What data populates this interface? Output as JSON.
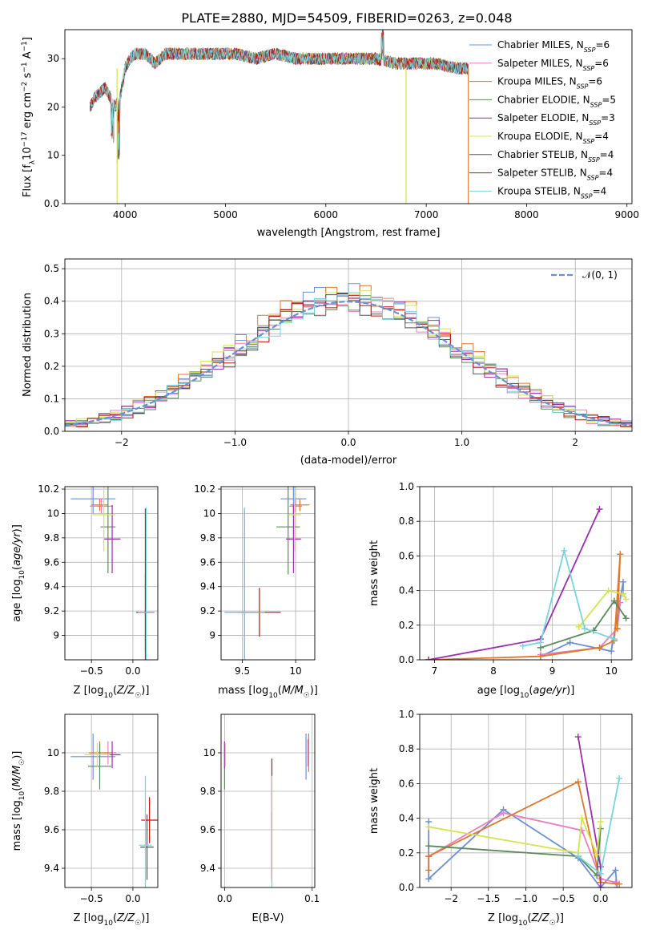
{
  "title": "PLATE=2880, MJD=54509, FIBERID=0263, z=0.048",
  "colors": {
    "chabrier_miles": "#6b8fd6",
    "salpeter_miles": "#e87fbf",
    "kroupa_miles": "#e0772a",
    "chabrier_elodie": "#5b8a5b",
    "salpeter_elodie": "#9b2fae",
    "kroupa_elodie": "#d4e34f",
    "chabrier_stelib": "#555555",
    "salpeter_stelib": "#c01010",
    "kroupa_stelib": "#77d4dc",
    "normal_curve": "#6b8fd6",
    "grid": "#b0b0b0"
  },
  "chart_data": [
    {
      "id": "spectrum",
      "type": "line",
      "xlabel": "wavelength [Angstrom, rest frame]",
      "ylabel": "Flux [f_λ 10^-17 erg cm^-2 s^-1 A^-1]",
      "xlim": [
        3400,
        9050
      ],
      "ylim": [
        0,
        36
      ],
      "xticks": [
        4000,
        5000,
        6000,
        7000,
        8000,
        9000
      ],
      "yticks": [
        0,
        10,
        20,
        30
      ],
      "grid": false,
      "legend_position": "right",
      "legend": [
        {
          "base": "Chabrier MILES, N",
          "sub": "SSP",
          "tail": "=6",
          "color_key": "chabrier_miles"
        },
        {
          "base": "Salpeter MILES, N",
          "sub": "SSP",
          "tail": "=6",
          "color_key": "salpeter_miles"
        },
        {
          "base": "Kroupa MILES, N",
          "sub": "SSP",
          "tail": "=6",
          "color_key": "kroupa_miles"
        },
        {
          "base": "Chabrier ELODIE, N",
          "sub": "SSP",
          "tail": "=5",
          "color_key": "chabrier_elodie"
        },
        {
          "base": "Salpeter ELODIE, N",
          "sub": "SSP",
          "tail": "=3",
          "color_key": "salpeter_elodie"
        },
        {
          "base": "Kroupa ELODIE, N",
          "sub": "SSP",
          "tail": "=4",
          "color_key": "kroupa_elodie"
        },
        {
          "base": "Chabrier STELIB, N",
          "sub": "SSP",
          "tail": "=4",
          "color_key": "chabrier_stelib"
        },
        {
          "base": "Salpeter STELIB, N",
          "sub": "SSP",
          "tail": "=4",
          "color_key": "salpeter_stelib"
        },
        {
          "base": "Kroupa STELIB, N",
          "sub": "SSP",
          "tail": "=4",
          "color_key": "kroupa_stelib"
        }
      ],
      "flux_envelope": {
        "x": [
          3650,
          3700,
          3750,
          3800,
          3850,
          3900,
          3950,
          4000,
          4050,
          4100,
          4200,
          4300,
          4400,
          4500,
          4700,
          4900,
          5100,
          5300,
          5500,
          5700,
          5900,
          6100,
          6300,
          6500,
          6700,
          6900,
          7100,
          7300,
          7400
        ],
        "y": [
          20,
          22,
          23,
          24,
          22,
          20,
          22,
          28,
          30,
          31,
          31,
          29,
          31,
          31,
          31,
          31,
          31,
          30,
          31,
          30,
          30,
          30,
          30,
          30,
          29,
          29,
          29,
          28,
          28
        ]
      },
      "cutoffs": [
        {
          "x": 3920,
          "y": 0,
          "color_key": "kroupa_elodie"
        },
        {
          "x": 6800,
          "y": 0,
          "color_key": "kroupa_elodie"
        },
        {
          "x": 7420,
          "y": 0,
          "color_key": "kroupa_miles"
        }
      ]
    },
    {
      "id": "residual_histogram",
      "type": "line",
      "xlabel": "(data-model)/error",
      "ylabel": "Normed distribution",
      "xlim": [
        -2.5,
        2.5
      ],
      "ylim": [
        0,
        0.53
      ],
      "xticks": [
        -2,
        -1,
        0,
        1,
        2
      ],
      "yticks": [
        0.0,
        0.1,
        0.2,
        0.3,
        0.4,
        0.5
      ],
      "grid": true,
      "legend_position": "top-right",
      "legend_label": "𝒩(0, 1)",
      "bin_width": 0.1,
      "histograms": [
        {
          "color_key": "chabrier_miles",
          "jitter_seed": 1,
          "scale": 1.06
        },
        {
          "color_key": "salpeter_miles",
          "jitter_seed": 2,
          "scale": 1.0
        },
        {
          "color_key": "kroupa_miles",
          "jitter_seed": 3,
          "scale": 1.08
        },
        {
          "color_key": "chabrier_elodie",
          "jitter_seed": 4,
          "scale": 1.0
        },
        {
          "color_key": "salpeter_elodie",
          "jitter_seed": 5,
          "scale": 1.04
        },
        {
          "color_key": "kroupa_elodie",
          "jitter_seed": 6,
          "scale": 1.05
        },
        {
          "color_key": "chabrier_stelib",
          "jitter_seed": 7,
          "scale": 0.98
        },
        {
          "color_key": "salpeter_stelib",
          "jitter_seed": 8,
          "scale": 1.0
        },
        {
          "color_key": "kroupa_stelib",
          "jitter_seed": 9,
          "scale": 1.0
        }
      ]
    },
    {
      "id": "age_vs_Z",
      "type": "scatter",
      "xlabel": "Z [log10(Z/Z☉)]",
      "ylabel": "age [log10(age/yr)]",
      "xlim": [
        -0.82,
        0.3
      ],
      "ylim": [
        8.8,
        10.22
      ],
      "xticks": [
        -0.5,
        0.0
      ],
      "yticks": [
        9.0,
        9.2,
        9.4,
        9.6,
        9.8,
        10.0,
        10.2
      ],
      "grid": true,
      "points": [
        {
          "x": -0.48,
          "y": 10.12,
          "xerr": 0.27,
          "yerr": 0.12,
          "color_key": "chabrier_miles"
        },
        {
          "x": -0.38,
          "y": 10.06,
          "xerr": 0.14,
          "yerr": 0.06,
          "color_key": "salpeter_miles"
        },
        {
          "x": -0.4,
          "y": 10.07,
          "xerr": 0.1,
          "yerr": 0.05,
          "color_key": "kroupa_miles"
        },
        {
          "x": -0.3,
          "y": 9.89,
          "xerr": 0.09,
          "yerr": 0.38,
          "color_key": "chabrier_elodie"
        },
        {
          "x": -0.25,
          "y": 9.79,
          "xerr": 0.1,
          "yerr": 0.28,
          "color_key": "salpeter_elodie"
        },
        {
          "x": -0.35,
          "y": 9.99,
          "xerr": 0.14,
          "yerr": 0.3,
          "color_key": "kroupa_elodie"
        },
        {
          "x": 0.15,
          "y": 9.19,
          "xerr": 0.11,
          "yerr": 0.32,
          "color_key": "chabrier_stelib"
        },
        {
          "x": 0.15,
          "y": 9.19,
          "xerr": 0.1,
          "yerr": 0.85,
          "color_key": "salpeter_stelib"
        },
        {
          "x": 0.16,
          "y": 9.19,
          "xerr": 0.1,
          "yerr": 0.86,
          "color_key": "kroupa_stelib"
        }
      ]
    },
    {
      "id": "age_vs_mass",
      "type": "scatter",
      "xlabel": "mass [log10(M/M☉)]",
      "ylabel": "",
      "xlim": [
        9.3,
        10.18
      ],
      "ylim": [
        8.8,
        10.22
      ],
      "xticks": [
        9.5,
        10.0
      ],
      "yticks": [
        9.0,
        9.2,
        9.4,
        9.6,
        9.8,
        10.0,
        10.2
      ],
      "grid": true,
      "points": [
        {
          "x": 9.98,
          "y": 10.12,
          "xerr": 0.12,
          "yerr": 0.1,
          "color_key": "chabrier_miles"
        },
        {
          "x": 10.0,
          "y": 10.06,
          "xerr": 0.06,
          "yerr": 0.05,
          "color_key": "salpeter_miles"
        },
        {
          "x": 10.04,
          "y": 10.07,
          "xerr": 0.09,
          "yerr": 0.05,
          "color_key": "kroupa_miles"
        },
        {
          "x": 9.93,
          "y": 9.89,
          "xerr": 0.11,
          "yerr": 0.39,
          "color_key": "chabrier_elodie"
        },
        {
          "x": 9.98,
          "y": 9.79,
          "xerr": 0.07,
          "yerr": 0.28,
          "color_key": "salpeter_elodie"
        },
        {
          "x": 9.99,
          "y": 9.99,
          "xerr": 0.06,
          "yerr": 0.3,
          "color_key": "kroupa_elodie"
        },
        {
          "x": 9.66,
          "y": 9.19,
          "xerr": 0.2,
          "yerr": 0.2,
          "color_key": "salpeter_stelib"
        },
        {
          "x": 9.52,
          "y": 9.19,
          "xerr": 0.18,
          "yerr": 0.85,
          "color_key": "chabrier_stelib"
        },
        {
          "x": 9.52,
          "y": 9.19,
          "xerr": 0.19,
          "yerr": 0.86,
          "color_key": "kroupa_stelib"
        }
      ]
    },
    {
      "id": "weight_vs_age",
      "type": "line",
      "xlabel": "age [log10(age/yr)]",
      "ylabel": "mass weight",
      "xlim": [
        6.75,
        10.35
      ],
      "ylim": [
        0,
        1.0
      ],
      "xticks": [
        7,
        8,
        9,
        10
      ],
      "yticks": [
        0.0,
        0.2,
        0.4,
        0.6,
        0.8,
        1.0
      ],
      "grid": true,
      "series": [
        {
          "color_key": "chabrier_miles",
          "x": [
            8.8,
            9.3,
            10.0,
            10.2,
            10.2
          ],
          "y": [
            0.02,
            0.1,
            0.05,
            0.45,
            0.38
          ]
        },
        {
          "color_key": "salpeter_miles",
          "x": [
            8.8,
            9.8,
            10.1,
            10.15
          ],
          "y": [
            0.03,
            0.07,
            0.18,
            0.33
          ]
        },
        {
          "color_key": "kroupa_miles",
          "x": [
            6.9,
            8.8,
            9.8,
            10.05,
            10.15,
            10.1
          ],
          "y": [
            0.0,
            0.02,
            0.07,
            0.11,
            0.61,
            0.18
          ]
        },
        {
          "color_key": "chabrier_elodie",
          "x": [
            8.8,
            9.7,
            10.05,
            10.25
          ],
          "y": [
            0.07,
            0.17,
            0.34,
            0.24
          ]
        },
        {
          "color_key": "salpeter_elodie",
          "x": [
            6.9,
            8.8,
            9.8
          ],
          "y": [
            0.0,
            0.12,
            0.87
          ]
        },
        {
          "color_key": "kroupa_elodie",
          "x": [
            9.45,
            9.95,
            10.2,
            10.25
          ],
          "y": [
            0.19,
            0.4,
            0.38,
            0.35
          ]
        },
        {
          "color_key": "kroupa_stelib",
          "x": [
            8.5,
            8.8,
            9.2,
            9.55,
            10.05
          ],
          "y": [
            0.08,
            0.1,
            0.63,
            0.18,
            0.12
          ]
        }
      ]
    },
    {
      "id": "mass_vs_Z",
      "type": "scatter",
      "xlabel": "Z [log10(Z/Z☉)]",
      "ylabel": "mass [log10(M/M☉)]",
      "xlim": [
        -0.82,
        0.3
      ],
      "ylim": [
        9.3,
        10.2
      ],
      "xticks": [
        -0.5,
        0.0
      ],
      "yticks": [
        9.4,
        9.6,
        9.8,
        10.0
      ],
      "grid": true,
      "points": [
        {
          "x": -0.48,
          "y": 9.98,
          "xerr": 0.27,
          "yerr": 0.12,
          "color_key": "chabrier_miles"
        },
        {
          "x": -0.3,
          "y": 10.0,
          "xerr": 0.1,
          "yerr": 0.06,
          "color_key": "salpeter_miles"
        },
        {
          "x": -0.4,
          "y": 10.0,
          "xerr": 0.13,
          "yerr": 0.06,
          "color_key": "kroupa_miles"
        },
        {
          "x": -0.4,
          "y": 9.93,
          "xerr": 0.14,
          "yerr": 0.12,
          "color_key": "chabrier_elodie"
        },
        {
          "x": -0.25,
          "y": 9.99,
          "xerr": 0.1,
          "yerr": 0.07,
          "color_key": "salpeter_elodie"
        },
        {
          "x": -0.43,
          "y": 9.99,
          "xerr": 0.15,
          "yerr": 0.06,
          "color_key": "kroupa_elodie"
        },
        {
          "x": 0.17,
          "y": 9.51,
          "xerr": 0.08,
          "yerr": 0.17,
          "color_key": "chabrier_stelib"
        },
        {
          "x": 0.2,
          "y": 9.65,
          "xerr": 0.1,
          "yerr": 0.12,
          "color_key": "salpeter_stelib"
        },
        {
          "x": 0.15,
          "y": 9.52,
          "xerr": 0.08,
          "yerr": 0.36,
          "color_key": "kroupa_stelib"
        }
      ]
    },
    {
      "id": "mass_vs_ebv",
      "type": "scatter",
      "xlabel": "E(B-V)",
      "ylabel": "",
      "xlim": [
        -0.004,
        0.103
      ],
      "ylim": [
        9.3,
        10.2
      ],
      "xticks": [
        0.0,
        0.1
      ],
      "yticks": [
        9.4,
        9.6,
        9.8,
        10.0
      ],
      "grid": true,
      "points": [
        {
          "x": 0.093,
          "y": 9.98,
          "xerr": 0.0,
          "yerr": 0.12,
          "color_key": "chabrier_miles"
        },
        {
          "x": 0.095,
          "y": 10.0,
          "xerr": 0.0,
          "yerr": 0.07,
          "color_key": "salpeter_miles"
        },
        {
          "x": 0.096,
          "y": 10.0,
          "xerr": 0.0,
          "yerr": 0.1,
          "color_key": "kroupa_miles"
        },
        {
          "x": 0.0,
          "y": 9.93,
          "xerr": 0.0,
          "yerr": 0.12,
          "color_key": "chabrier_elodie"
        },
        {
          "x": 0.0,
          "y": 9.99,
          "xerr": 0.0,
          "yerr": 0.07,
          "color_key": "salpeter_elodie"
        },
        {
          "x": 0.001,
          "y": 9.99,
          "xerr": 0.0,
          "yerr": 0.06,
          "color_key": "kroupa_elodie"
        },
        {
          "x": 0.054,
          "y": 9.65,
          "xerr": 0.0,
          "yerr": 0.32,
          "color_key": "salpeter_stelib"
        },
        {
          "x": 0.054,
          "y": 9.52,
          "xerr": 0.0,
          "yerr": 0.17,
          "color_key": "chabrier_stelib"
        },
        {
          "x": 0.054,
          "y": 9.52,
          "xerr": 0.0,
          "yerr": 0.36,
          "color_key": "kroupa_stelib"
        }
      ]
    },
    {
      "id": "weight_vs_Z",
      "type": "line",
      "xlabel": "Z [log10(Z/Z☉)]",
      "ylabel": "mass weight",
      "xlim": [
        -2.42,
        0.42
      ],
      "ylim": [
        0,
        1.0
      ],
      "xticks": [
        -2.0,
        -1.5,
        -1.0,
        -0.5,
        0.0
      ],
      "yticks": [
        0.0,
        0.2,
        0.4,
        0.6,
        0.8,
        1.0
      ],
      "grid": true,
      "series": [
        {
          "color_key": "chabrier_miles",
          "x": [
            -2.3,
            -2.3,
            -1.3,
            -0.3,
            0.0,
            0.2,
            0.22
          ],
          "y": [
            0.38,
            0.05,
            0.45,
            0.17,
            0.0,
            0.1,
            0.0
          ]
        },
        {
          "color_key": "salpeter_miles",
          "x": [
            -2.3,
            -1.3,
            -0.25,
            0.0,
            0.2
          ],
          "y": [
            0.18,
            0.43,
            0.33,
            0.05,
            0.03
          ]
        },
        {
          "color_key": "kroupa_miles",
          "x": [
            -2.3,
            -2.3,
            -0.3,
            0.0,
            0.25
          ],
          "y": [
            0.1,
            0.18,
            0.61,
            0.03,
            0.02
          ]
        },
        {
          "color_key": "chabrier_elodie",
          "x": [
            -2.3,
            -0.3,
            -0.05,
            0.0
          ],
          "y": [
            0.24,
            0.18,
            0.07,
            0.34
          ]
        },
        {
          "color_key": "salpeter_elodie",
          "x": [
            -0.3,
            0.0,
            0.0
          ],
          "y": [
            0.87,
            0.12,
            0.0
          ]
        },
        {
          "color_key": "kroupa_elodie",
          "x": [
            -2.3,
            -0.3,
            -0.25,
            -0.05,
            0.0
          ],
          "y": [
            0.35,
            0.2,
            0.4,
            0.19,
            0.38
          ]
        },
        {
          "color_key": "kroupa_stelib",
          "x": [
            -0.3,
            0.0,
            0.25
          ],
          "y": [
            0.18,
            0.08,
            0.63
          ]
        }
      ]
    }
  ]
}
